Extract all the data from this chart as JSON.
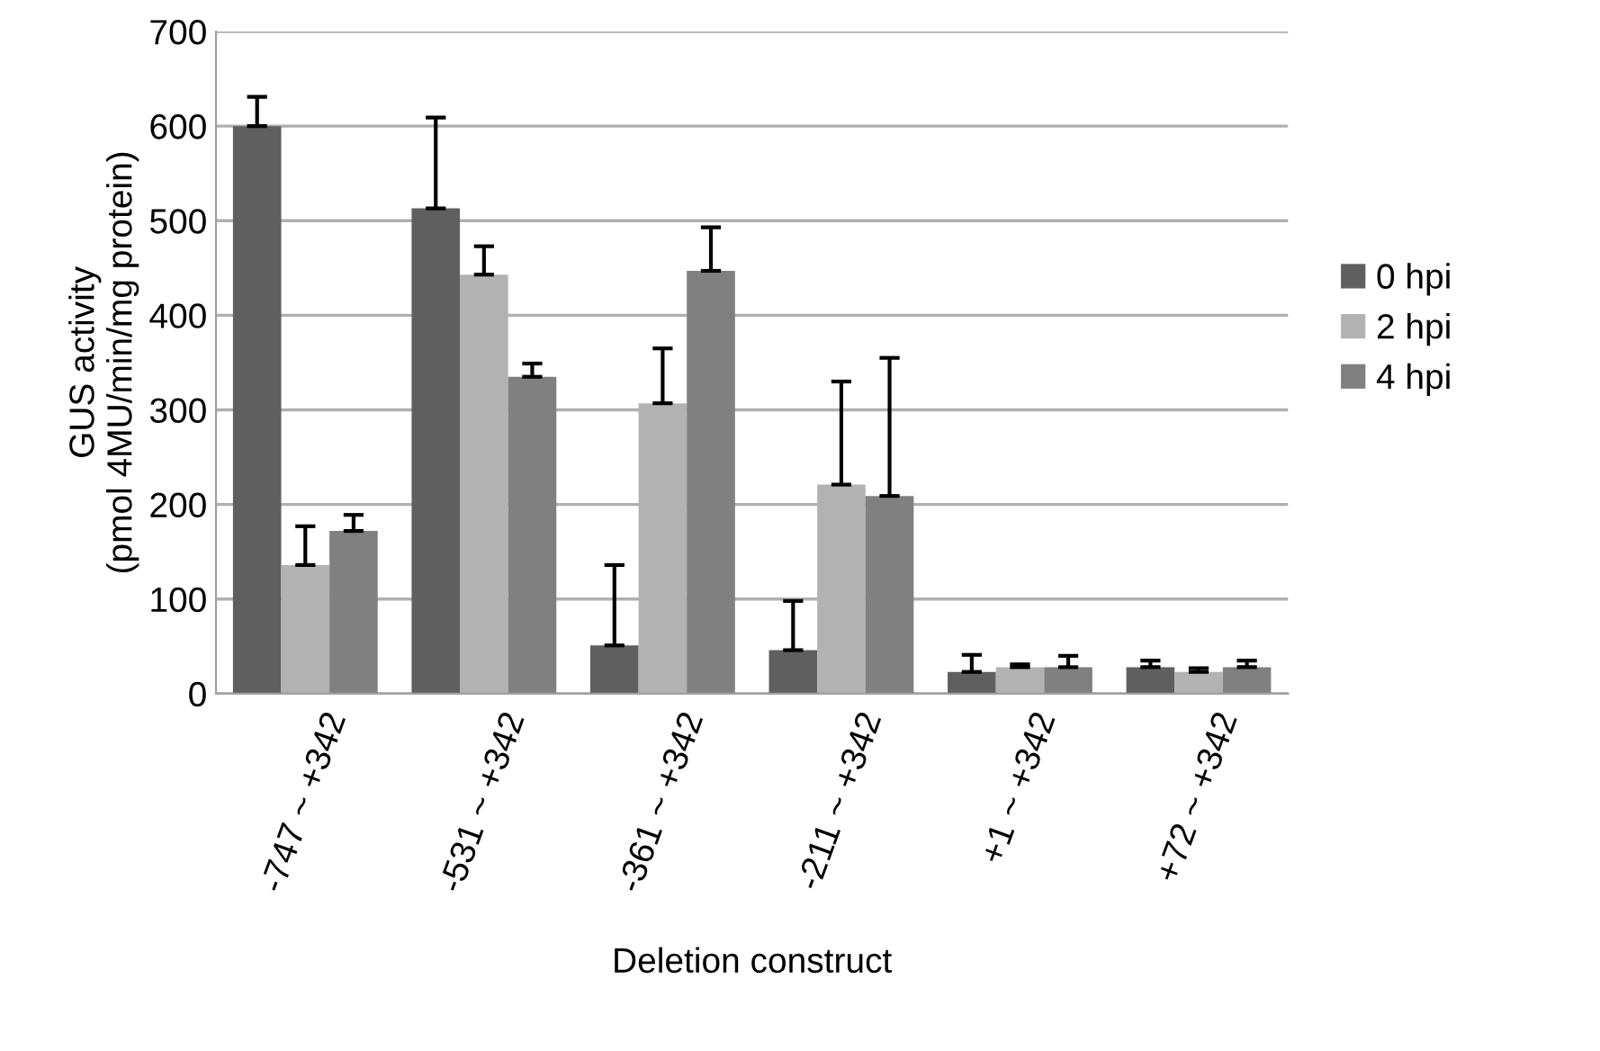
{
  "chart_data": {
    "type": "bar",
    "xlabel": "Deletion construct",
    "ylabel": "GUS activity\n(pmol 4MU/min/mg protein)",
    "categories": [
      "-747 ~ +342",
      "-531 ~ +342",
      "-361 ~ +342",
      "-211 ~ +342",
      "+1 ~ +342",
      "+72 ~ +342"
    ],
    "series": [
      {
        "name": "0 hpi",
        "color": "#5f5f5f",
        "values": [
          600,
          513,
          51,
          46,
          23,
          28
        ],
        "errors": [
          [
            600,
            631
          ],
          [
            513,
            609
          ],
          [
            51,
            136
          ],
          [
            46,
            98
          ],
          [
            23,
            41
          ],
          [
            28,
            35
          ]
        ]
      },
      {
        "name": "2 hpi",
        "color": "#b2b2b2",
        "values": [
          136,
          443,
          307,
          221,
          28,
          23
        ],
        "errors": [
          [
            136,
            177
          ],
          [
            443,
            473
          ],
          [
            307,
            365
          ],
          [
            221,
            330
          ],
          [
            28,
            31
          ],
          [
            23,
            27
          ]
        ]
      },
      {
        "name": "4 hpi",
        "color": "#808080",
        "values": [
          172,
          335,
          447,
          209,
          28,
          28
        ],
        "errors": [
          [
            172,
            189
          ],
          [
            335,
            349
          ],
          [
            447,
            493
          ],
          [
            209,
            355
          ],
          [
            28,
            40
          ],
          [
            28,
            35
          ]
        ]
      }
    ],
    "ylim": [
      0,
      700
    ],
    "yticks": [
      0,
      100,
      200,
      300,
      400,
      500,
      600,
      700
    ],
    "grid": "y",
    "legend": "right"
  }
}
